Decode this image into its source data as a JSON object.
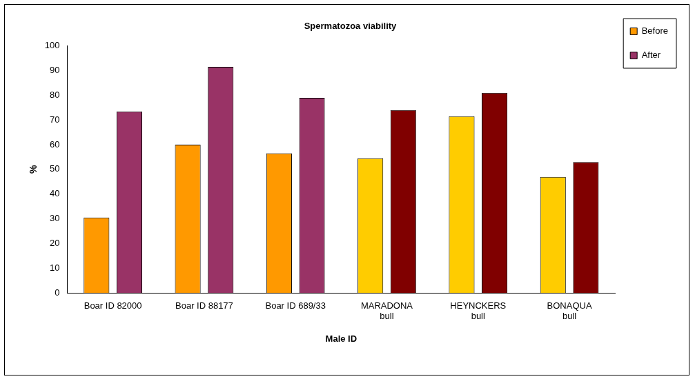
{
  "chart_data": {
    "type": "bar",
    "title": "Spermatozoa viability",
    "xlabel": "Male ID",
    "ylabel": "%",
    "categories": [
      "Boar ID 82000",
      "Boar ID 88177",
      "Boar ID 689/33",
      "MARADONA\nbull",
      "HEYNCKERS\nbull",
      "BONAQUA\nbull"
    ],
    "series": [
      {
        "name": "Before",
        "color": "#ff9900",
        "colors": [
          "#ff9900",
          "#ff9900",
          "#ff9900",
          "#ffcc00",
          "#ffcc00",
          "#ffcc00"
        ],
        "values": [
          30.5,
          60,
          56.5,
          54.5,
          71.5,
          47
        ]
      },
      {
        "name": "After",
        "color": "#993366",
        "colors": [
          "#993366",
          "#993366",
          "#993366",
          "#800000",
          "#800000",
          "#800000"
        ],
        "values": [
          73.5,
          91.5,
          79,
          74,
          81,
          53
        ]
      }
    ],
    "ylim": [
      0,
      100
    ],
    "yticks": [
      0,
      10,
      20,
      30,
      40,
      50,
      60,
      70,
      80,
      90,
      100
    ],
    "grid": false,
    "legend": "top right"
  }
}
